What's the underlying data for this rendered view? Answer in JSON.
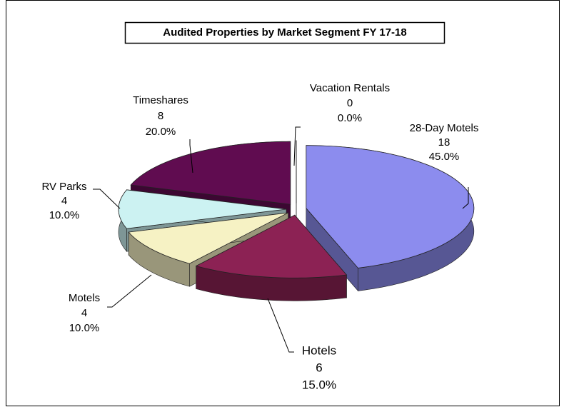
{
  "chart_data": {
    "type": "pie",
    "title": "Audited Properties by Market Segment FY 17-18",
    "categories": [
      "28-Day Motels",
      "Hotels",
      "Motels",
      "RV Parks",
      "Timeshares",
      "Vacation Rentals"
    ],
    "values": [
      18,
      6,
      4,
      4,
      8,
      0
    ],
    "percentages": [
      45,
      15,
      10,
      10,
      20,
      0
    ],
    "percentage_labels": [
      "45.0%",
      "15.0%",
      "10.0%",
      "10.0%",
      "20.0%",
      "0.0%"
    ],
    "colors": [
      "#8c8cee",
      "#8c2254",
      "#f6f2c4",
      "#ccf2f2",
      "#600c50",
      "#ffffff"
    ]
  }
}
